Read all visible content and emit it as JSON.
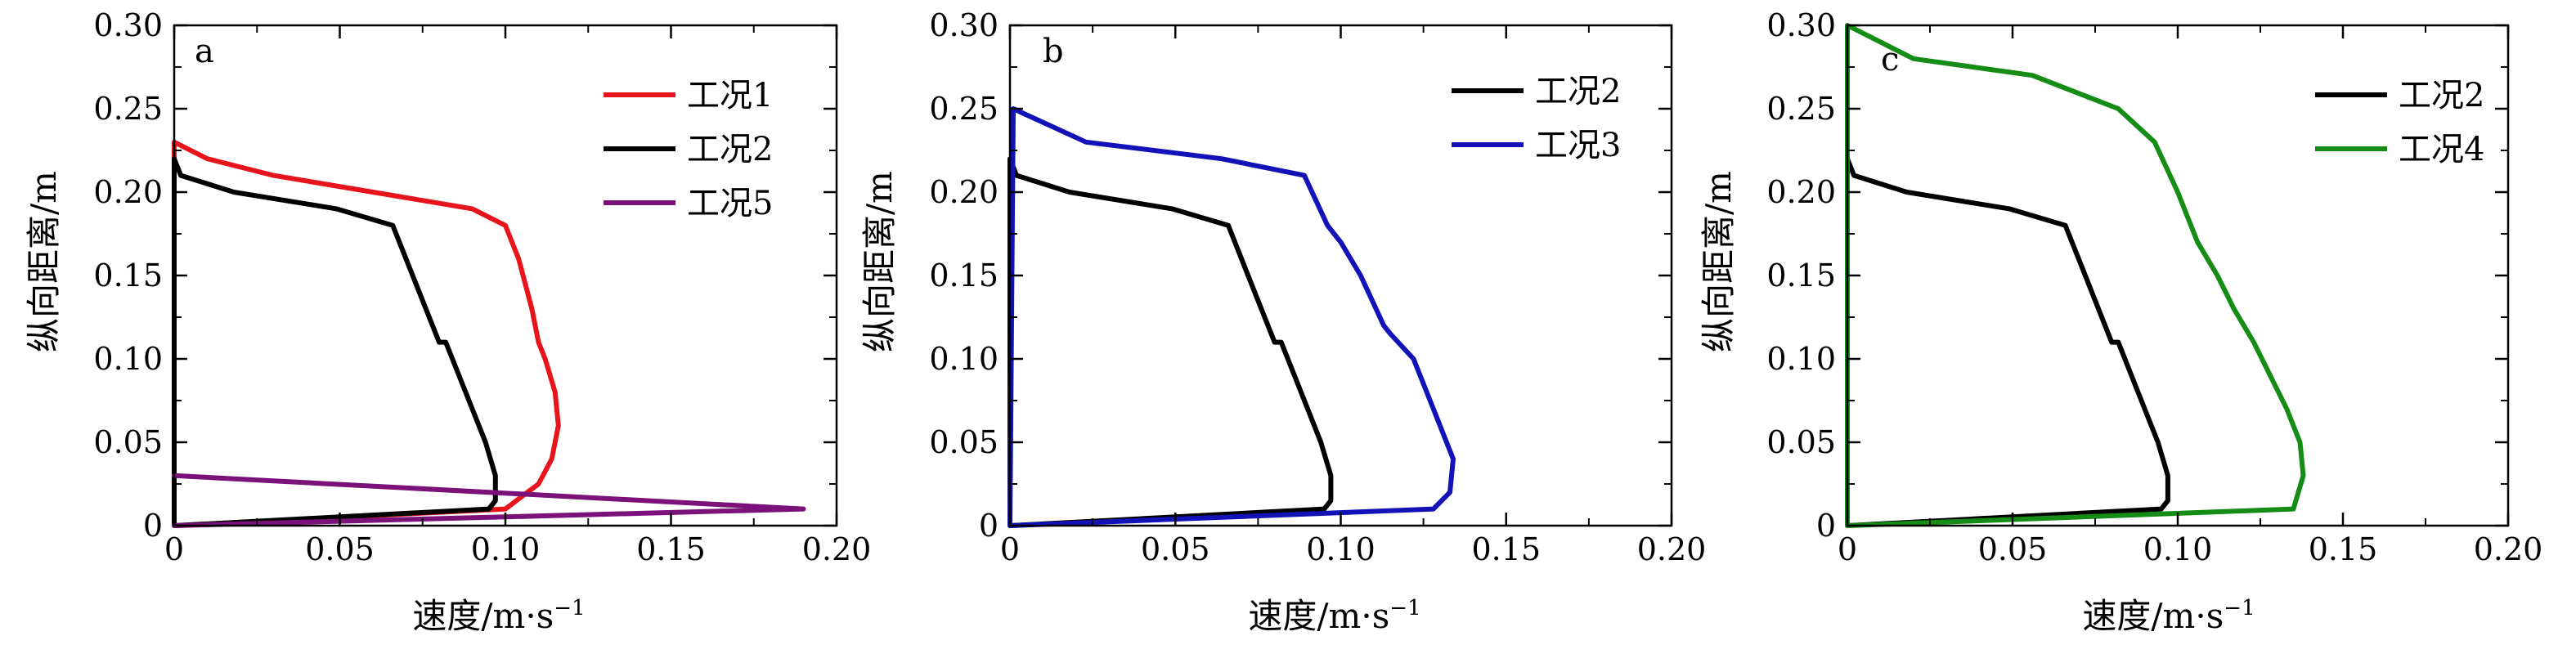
{
  "chart_data": [
    {
      "type": "line",
      "panel_label": "a",
      "xlabel": "速度/m·s",
      "xlabel_sup": "−1",
      "ylabel": "纵向距离/m",
      "xlim": [
        0,
        0.2
      ],
      "ylim": [
        0,
        0.3
      ],
      "xticks": [
        "0",
        "0.05",
        "0.10",
        "0.15",
        "0.20"
      ],
      "yticks": [
        "0",
        "0.05",
        "0.10",
        "0.15",
        "0.20",
        "0.25",
        "0.30"
      ],
      "legend_position": "top-right",
      "series": [
        {
          "name": "工况1",
          "color": "#e8141b",
          "x": [
            0.0,
            0.0,
            0.01,
            0.03,
            0.06,
            0.09,
            0.1,
            0.104,
            0.108,
            0.11,
            0.112,
            0.115,
            0.116,
            0.114,
            0.11,
            0.1,
            0.0
          ],
          "y": [
            0.0,
            0.23,
            0.22,
            0.21,
            0.2,
            0.19,
            0.18,
            0.16,
            0.13,
            0.11,
            0.1,
            0.08,
            0.06,
            0.04,
            0.025,
            0.01,
            0.0
          ]
        },
        {
          "name": "工况2",
          "color": "#000000",
          "x": [
            0.0,
            0.0,
            0.001,
            0.002,
            0.018,
            0.049,
            0.066,
            0.072,
            0.08,
            0.082,
            0.088,
            0.094,
            0.097,
            0.097,
            0.095,
            0.0
          ],
          "y": [
            0.0,
            0.22,
            0.215,
            0.21,
            0.2,
            0.19,
            0.18,
            0.15,
            0.11,
            0.11,
            0.08,
            0.05,
            0.03,
            0.015,
            0.01,
            0.0
          ]
        },
        {
          "name": "工况5",
          "color": "#7a127a",
          "x": [
            0.0,
            0.19,
            0.0
          ],
          "y": [
            0.03,
            0.01,
            0.0
          ]
        }
      ]
    },
    {
      "type": "line",
      "panel_label": "b",
      "xlabel": "速度/m·s",
      "xlabel_sup": "−1",
      "ylabel": "纵向距离/m",
      "xlim": [
        0,
        0.2
      ],
      "ylim": [
        0,
        0.3
      ],
      "xticks": [
        "0",
        "0.05",
        "0.10",
        "0.15",
        "0.20"
      ],
      "yticks": [
        "0",
        "0.05",
        "0.10",
        "0.15",
        "0.20",
        "0.25",
        "0.30"
      ],
      "legend_position": "top-right",
      "series": [
        {
          "name": "工况2",
          "color": "#000000",
          "x": [
            0.0,
            0.0,
            0.001,
            0.002,
            0.018,
            0.049,
            0.066,
            0.072,
            0.08,
            0.082,
            0.088,
            0.094,
            0.097,
            0.097,
            0.095,
            0.0
          ],
          "y": [
            0.0,
            0.22,
            0.215,
            0.21,
            0.2,
            0.19,
            0.18,
            0.15,
            0.11,
            0.11,
            0.08,
            0.05,
            0.03,
            0.015,
            0.01,
            0.0
          ]
        },
        {
          "name": "工况3",
          "color": "#1212b8",
          "x": [
            0.0,
            0.001,
            0.023,
            0.064,
            0.089,
            0.096,
            0.1,
            0.106,
            0.113,
            0.115,
            0.122,
            0.128,
            0.132,
            0.134,
            0.133,
            0.128,
            0.0
          ],
          "y": [
            0.0,
            0.25,
            0.23,
            0.22,
            0.21,
            0.18,
            0.17,
            0.15,
            0.12,
            0.115,
            0.1,
            0.07,
            0.05,
            0.04,
            0.02,
            0.01,
            0.0
          ]
        }
      ]
    },
    {
      "type": "line",
      "panel_label": "c",
      "xlabel": "速度/m·s",
      "xlabel_sup": "−1",
      "ylabel": "纵向距离/m",
      "xlim": [
        0,
        0.2
      ],
      "ylim": [
        0,
        0.3
      ],
      "xticks": [
        "0",
        "0.05",
        "0.10",
        "0.15",
        "0.20"
      ],
      "yticks": [
        "0",
        "0.05",
        "0.10",
        "0.15",
        "0.20",
        "0.25",
        "0.30"
      ],
      "legend_position": "top-right",
      "series": [
        {
          "name": "工况2",
          "color": "#000000",
          "x": [
            0.0,
            0.0,
            0.001,
            0.002,
            0.018,
            0.049,
            0.066,
            0.072,
            0.08,
            0.082,
            0.088,
            0.094,
            0.097,
            0.097,
            0.095,
            0.0
          ],
          "y": [
            0.0,
            0.22,
            0.215,
            0.21,
            0.2,
            0.19,
            0.18,
            0.15,
            0.11,
            0.11,
            0.08,
            0.05,
            0.03,
            0.015,
            0.01,
            0.0
          ]
        },
        {
          "name": "工况4",
          "color": "#158c15",
          "x": [
            0.0,
            0.0,
            0.02,
            0.056,
            0.082,
            0.093,
            0.1,
            0.106,
            0.112,
            0.117,
            0.12,
            0.123,
            0.128,
            0.133,
            0.137,
            0.138,
            0.135,
            0.0
          ],
          "y": [
            0.0,
            0.3,
            0.28,
            0.27,
            0.25,
            0.23,
            0.2,
            0.17,
            0.15,
            0.13,
            0.12,
            0.11,
            0.09,
            0.07,
            0.05,
            0.03,
            0.01,
            0.0
          ]
        }
      ]
    }
  ]
}
